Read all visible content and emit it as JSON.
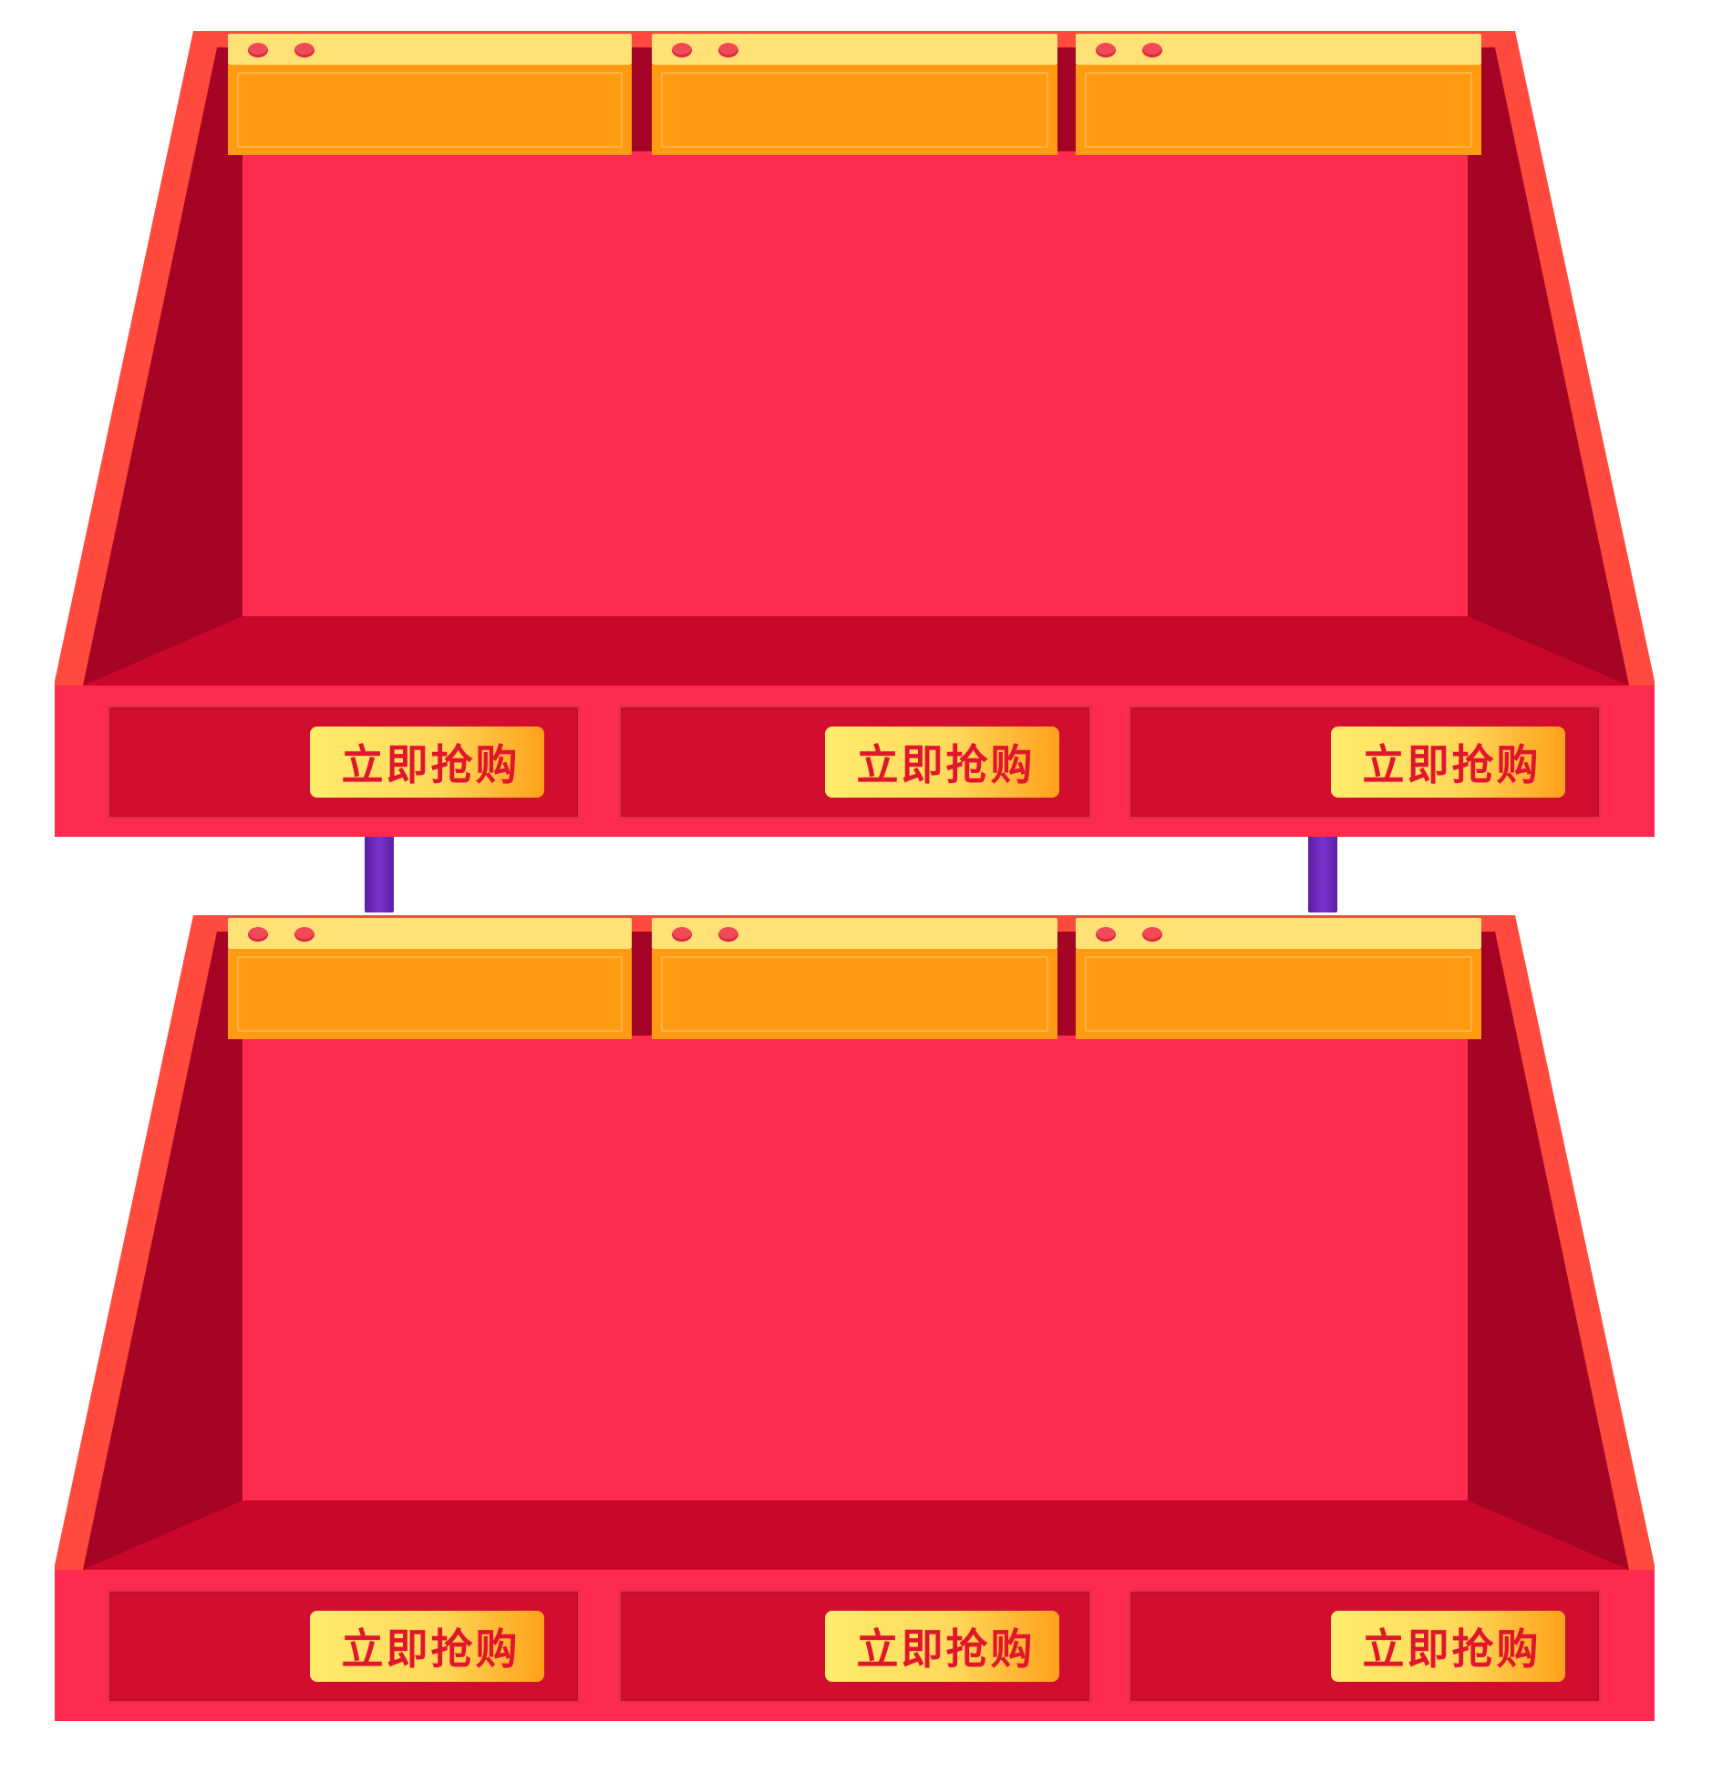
{
  "colors": {
    "outer_frame": "#ff4a3d",
    "inner_side": "#a50424",
    "back_panel": "#ff2b4e",
    "floor": "#c8072b",
    "front_panel": "#ff2b4e",
    "drawer": "#d20e30",
    "sign_cap": "#ffe176",
    "sign_face": "#ff9b10",
    "rivet": "#f04a57",
    "button_start": "#ffec6d",
    "button_end": "#ffa11b",
    "button_text": "#e0162d",
    "pole": "#6a26b8"
  },
  "shelves": [
    {
      "buttons": [
        {
          "label": "立即抢购"
        },
        {
          "label": "立即抢购"
        },
        {
          "label": "立即抢购"
        }
      ]
    },
    {
      "buttons": [
        {
          "label": "立即抢购"
        },
        {
          "label": "立即抢购"
        },
        {
          "label": "立即抢购"
        }
      ]
    }
  ]
}
